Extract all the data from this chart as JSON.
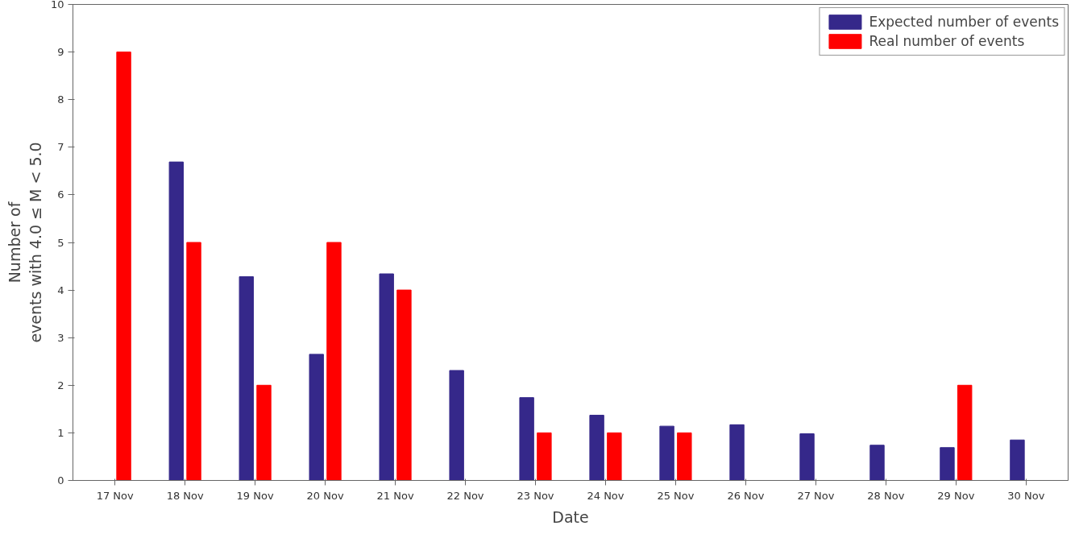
{
  "chart_data": {
    "type": "bar",
    "xlabel": "Date",
    "ylabel": "Number of\nevents with 4.0 ≤ M < 5.0",
    "categories": [
      "17 Nov",
      "18 Nov",
      "19 Nov",
      "20 Nov",
      "21 Nov",
      "22 Nov",
      "23 Nov",
      "24 Nov",
      "25 Nov",
      "26 Nov",
      "27 Nov",
      "28 Nov",
      "29 Nov",
      "30 Nov"
    ],
    "series": [
      {
        "name": "Expected number of events",
        "color": "#35288a",
        "values": [
          null,
          6.69,
          4.28,
          2.65,
          4.34,
          2.31,
          1.74,
          1.37,
          1.14,
          1.17,
          0.98,
          0.74,
          0.69,
          0.85
        ]
      },
      {
        "name": "Real number of events",
        "color": "#ff0000",
        "values": [
          9,
          5,
          2,
          5,
          4,
          null,
          1,
          1,
          1,
          null,
          null,
          null,
          2,
          null
        ]
      }
    ],
    "ylim": [
      0,
      10
    ],
    "yticks": [
      0,
      1,
      2,
      3,
      4,
      5,
      6,
      7,
      8,
      9,
      10
    ],
    "grid": false,
    "legend": "top right"
  }
}
